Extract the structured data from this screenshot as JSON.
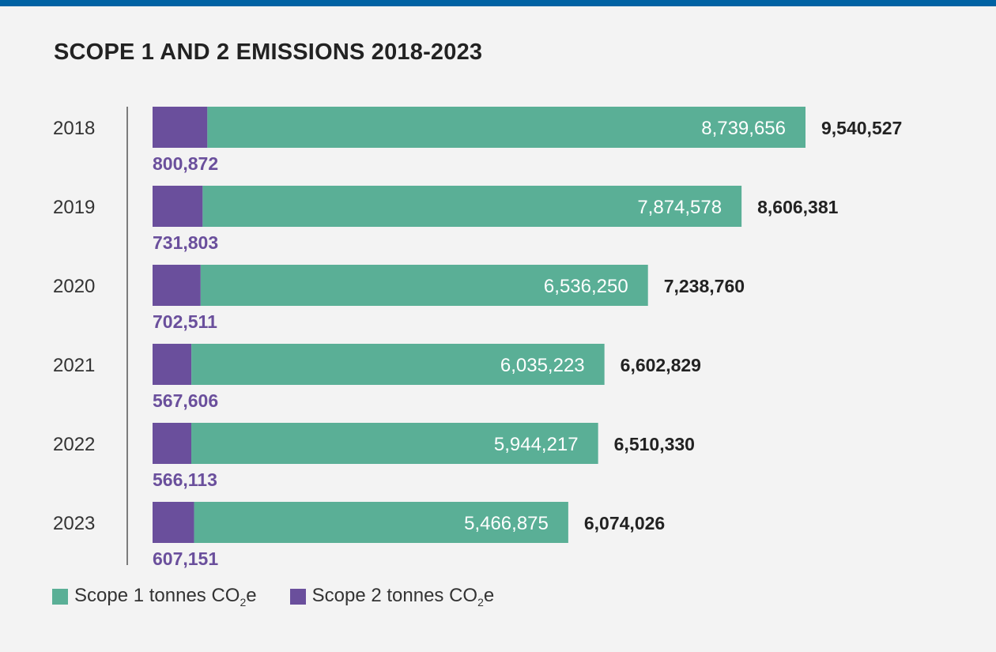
{
  "title": "SCOPE 1 AND 2 EMISSIONS 2018-2023",
  "colors": {
    "scope1": "#5aaf96",
    "scope2": "#6a4f9c",
    "topbar": "#0062a3"
  },
  "legend": {
    "scope1": {
      "prefix": "Scope 1 tonnes CO",
      "sub": "2",
      "suffix": "e"
    },
    "scope2": {
      "prefix": "Scope 2 tonnes CO",
      "sub": "2",
      "suffix": "e"
    }
  },
  "chart_data": {
    "type": "bar",
    "orientation": "horizontal",
    "stacked": true,
    "categories": [
      "2018",
      "2019",
      "2020",
      "2021",
      "2022",
      "2023"
    ],
    "series": [
      {
        "name": "Scope 2 tonnes CO2e",
        "values": [
          800872,
          731803,
          702511,
          567606,
          566113,
          607151
        ],
        "labels": [
          "800,872",
          "731,803",
          "702,511",
          "567,606",
          "566,113",
          "607,151"
        ]
      },
      {
        "name": "Scope 1 tonnes CO2e",
        "values": [
          8739656,
          7874578,
          6536250,
          6035223,
          5944217,
          5466875
        ],
        "labels": [
          "8,739,656",
          "7,874,578",
          "6,536,250",
          "6,035,223",
          "5,944,217",
          "5,466,875"
        ]
      }
    ],
    "totals": [
      9540527,
      8606381,
      7238760,
      6602829,
      6510330,
      6074026
    ],
    "total_labels": [
      "9,540,527",
      "8,606,381",
      "7,238,760",
      "6,602,829",
      "6,510,330",
      "6,074,026"
    ],
    "xlim": [
      0,
      9540527
    ],
    "legend_position": "bottom-left",
    "grid": false
  }
}
